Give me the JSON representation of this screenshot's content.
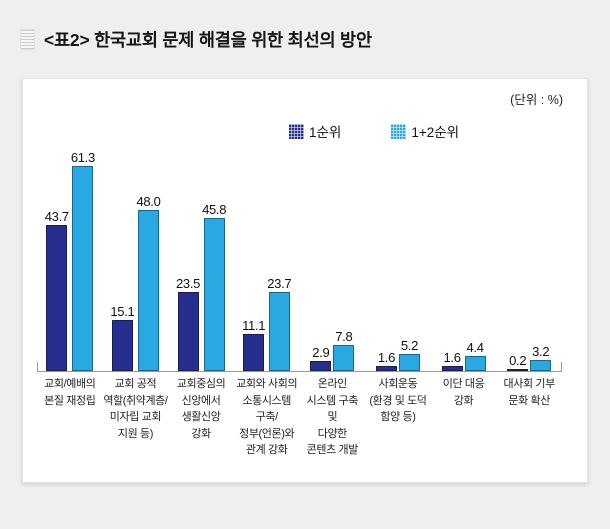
{
  "page": {
    "title": "<표2> 한국교회 문제 해결을 위한 최선의 방안"
  },
  "chart": {
    "unit_label": "(단위 : %)"
  },
  "chart_data": {
    "type": "bar",
    "title": "<표2> 한국교회 문제 해결을 위한 최선의 방안",
    "unit": "%",
    "grid": false,
    "legend_position": "top",
    "value_labels": true,
    "ylim": [
      0,
      65
    ],
    "categories": [
      "교회/예배의 본질 재정립",
      "교회 공적 역할(취약계층/미자립 교회 지원 등)",
      "교회중심의 신앙에서 생활신앙 강화",
      "교회와 사회의 소통시스템 구축/정부(언론)와 관계 강화",
      "온라인 시스템 구축 및 다양한 콘텐츠 개발",
      "사회운동(환경 및 도덕 함양 등)",
      "이단 대응 강화",
      "대사회 기부 문화 확산"
    ],
    "category_lines": [
      [
        "교회/예배의",
        "본질 재정립"
      ],
      [
        "교회 공적",
        "역할(취약계층/",
        "미자립 교회",
        "지원 등)"
      ],
      [
        "교회중심의",
        "신앙에서",
        "생활신앙",
        "강화"
      ],
      [
        "교회와 사회의",
        "소통시스템",
        "구축/",
        "정부(언론)와",
        "관계 강화"
      ],
      [
        "온라인",
        "시스템 구축",
        "및",
        "다양한",
        "콘텐츠 개발"
      ],
      [
        "사회운동",
        "(환경 및 도덕",
        "함양 등)"
      ],
      [
        "이단 대응",
        "강화"
      ],
      [
        "대사회 기부",
        "문화 확산"
      ]
    ],
    "series": [
      {
        "name": "1순위",
        "color": "#272f8e",
        "values": [
          43.7,
          15.1,
          23.5,
          11.1,
          2.9,
          1.6,
          1.6,
          0.2
        ]
      },
      {
        "name": "1+2순위",
        "color": "#29a9e2",
        "values": [
          61.3,
          48.0,
          45.8,
          23.7,
          7.8,
          5.2,
          4.4,
          3.2
        ]
      }
    ],
    "colors": {
      "series1": "#272f8e",
      "series2": "#29a9e2",
      "axis": "#999999"
    }
  }
}
